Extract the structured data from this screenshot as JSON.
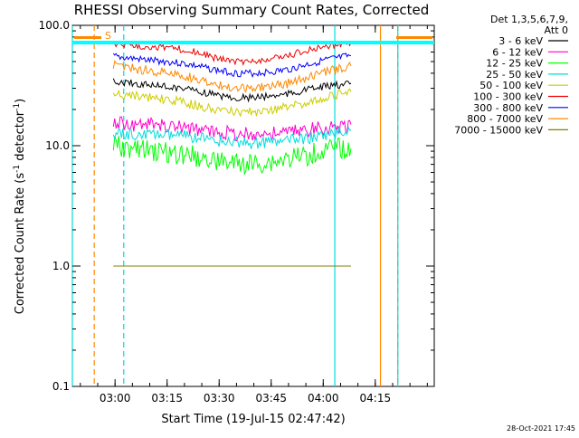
{
  "chart_data": {
    "type": "line",
    "title": "RHESSI Observing Summary Count Rates, Corrected",
    "xlabel": "Start Time (19-Jul-15 02:47:42)",
    "ylabel": "Corrected Count Rate (s",
    "ylabel_sup": "-1",
    "ylabel_mid": " detector",
    "ylabel_end": ")",
    "y_scale": "log",
    "ylim": [
      0.1,
      100.0
    ],
    "xlim": [
      "02:47:42",
      "04:32:00"
    ],
    "x_ticks": [
      "03:00",
      "03:15",
      "03:30",
      "03:45",
      "04:00",
      "04:15"
    ],
    "y_ticks": [
      "0.1",
      "1.0",
      "10.0",
      "100.0"
    ],
    "legend_title": "Det 1,3,5,6,7,9,",
    "legend_subtitle": "Att 0",
    "legend_position": "right",
    "flag_label": "S",
    "timestamp": "28-Oct-2021 17:45",
    "series": [
      {
        "name": "3 - 6 keV",
        "color": "#000000",
        "x": [
          "02:59:30",
          "03:05",
          "03:10",
          "03:15",
          "03:20",
          "03:25",
          "03:30",
          "03:35",
          "03:40",
          "03:45",
          "03:50",
          "03:55",
          "04:00",
          "04:05",
          "04:08"
        ],
        "values": [
          34,
          33,
          32,
          31,
          30,
          28,
          26,
          25,
          25,
          26,
          27,
          29,
          31,
          32,
          33
        ]
      },
      {
        "name": "6 - 12 keV",
        "color": "#ff00cc",
        "x": [
          "02:59:30",
          "03:05",
          "03:10",
          "03:15",
          "03:20",
          "03:25",
          "03:30",
          "03:35",
          "03:40",
          "03:45",
          "03:50",
          "03:55",
          "04:00",
          "04:05",
          "04:08"
        ],
        "values": [
          16,
          15,
          15,
          14.5,
          14,
          13.5,
          13,
          12.5,
          12.5,
          12.5,
          13,
          13.5,
          14,
          14.5,
          15
        ]
      },
      {
        "name": "12 - 25 keV",
        "color": "#00ff00",
        "x": [
          "02:59:30",
          "03:05",
          "03:10",
          "03:15",
          "03:20",
          "03:25",
          "03:30",
          "03:35",
          "03:40",
          "03:45",
          "03:50",
          "03:55",
          "04:00",
          "04:05",
          "04:08"
        ],
        "values": [
          10,
          9.5,
          9,
          8.8,
          8.5,
          8,
          7.5,
          7,
          7,
          7.3,
          7.8,
          8.3,
          9,
          9.5,
          9.5
        ]
      },
      {
        "name": "25 - 50 keV",
        "color": "#00dddd",
        "x": [
          "02:59:30",
          "03:05",
          "03:10",
          "03:15",
          "03:20",
          "03:25",
          "03:30",
          "03:35",
          "03:40",
          "03:45",
          "03:50",
          "03:55",
          "04:00",
          "04:05",
          "04:08"
        ],
        "values": [
          12.5,
          12.5,
          12.5,
          12.3,
          12,
          11.5,
          11,
          10.7,
          10.5,
          10.7,
          11,
          11.5,
          12,
          13,
          13.5
        ]
      },
      {
        "name": "50 - 100 keV",
        "color": "#cccc00",
        "x": [
          "02:59:30",
          "03:05",
          "03:10",
          "03:15",
          "03:20",
          "03:25",
          "03:30",
          "03:35",
          "03:40",
          "03:45",
          "03:50",
          "03:55",
          "04:00",
          "04:05",
          "04:08"
        ],
        "values": [
          27,
          26,
          25,
          24,
          23,
          21,
          19.5,
          19,
          19,
          20,
          21,
          23,
          25,
          27,
          28
        ]
      },
      {
        "name": "100 - 300 keV",
        "color": "#ee0000",
        "x": [
          "02:59:30",
          "03:05",
          "03:10",
          "03:15",
          "03:20",
          "03:25",
          "03:30",
          "03:35",
          "03:40",
          "03:45",
          "03:50",
          "03:55",
          "04:00",
          "04:05",
          "04:08"
        ],
        "values": [
          70,
          68,
          66,
          65,
          63,
          58,
          52,
          50,
          50,
          52,
          56,
          62,
          67,
          70,
          71
        ]
      },
      {
        "name": "300 - 800 keV",
        "color": "#0000ff",
        "x": [
          "02:59:30",
          "03:05",
          "03:10",
          "03:15",
          "03:20",
          "03:25",
          "03:30",
          "03:35",
          "03:40",
          "03:45",
          "03:50",
          "03:55",
          "04:00",
          "04:05",
          "04:08"
        ],
        "values": [
          55,
          53,
          51,
          50,
          48,
          45,
          42,
          40,
          40,
          41,
          43,
          47,
          51,
          54,
          56
        ]
      },
      {
        "name": "800 - 7000 keV",
        "color": "#ff8800",
        "x": [
          "02:59:30",
          "03:05",
          "03:10",
          "03:15",
          "03:20",
          "03:25",
          "03:30",
          "03:35",
          "03:40",
          "03:45",
          "03:50",
          "03:55",
          "04:00",
          "04:05",
          "04:08"
        ],
        "values": [
          47,
          44,
          42,
          40,
          38,
          35,
          32,
          30,
          30,
          31,
          33,
          36,
          40,
          44,
          46
        ]
      },
      {
        "name": "7000 - 15000 keV",
        "color": "#808000",
        "x": [
          "02:59:30",
          "03:10",
          "03:20",
          "03:30",
          "03:40",
          "03:50",
          "04:00",
          "04:08"
        ],
        "values": [
          1.0,
          1.0,
          1.0,
          1.0,
          1.0,
          1.0,
          1.0,
          1.0
        ]
      }
    ],
    "markers": [
      {
        "style": "solid",
        "color": "#00dddd",
        "x": "02:47:42"
      },
      {
        "style": "dashed",
        "color": "#ff8800",
        "x": "02:54:00"
      },
      {
        "style": "dashed",
        "color": "#00dddd",
        "x": "03:02:30"
      },
      {
        "style": "solid",
        "color": "#00dddd",
        "x": "04:03:20"
      },
      {
        "style": "solid",
        "color": "#ff8800",
        "x": "04:16:30"
      },
      {
        "style": "dashed",
        "color": "#ff8800",
        "x": "04:21:30"
      },
      {
        "style": "solid",
        "color": "#00dddd",
        "x": "04:21:30"
      }
    ]
  }
}
